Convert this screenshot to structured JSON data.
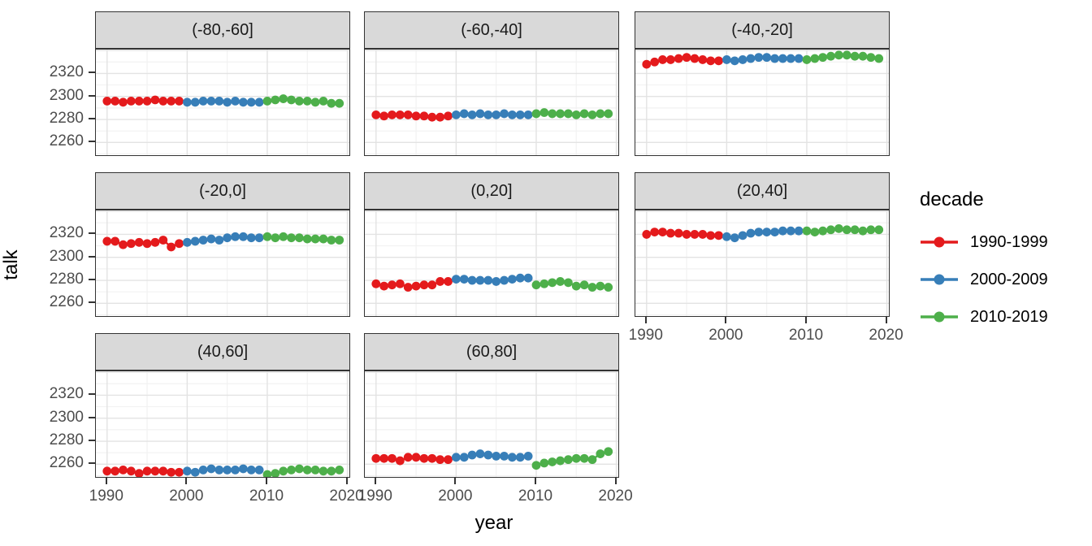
{
  "chart_data": {
    "type": "scatter",
    "xlabel": "year",
    "ylabel": "talk",
    "facet_variable_note": "panels are bins shown in strip labels",
    "x_ticks": [
      1990,
      2000,
      2010,
      2020
    ],
    "y_ticks": [
      2260,
      2280,
      2300,
      2320
    ],
    "y_grid_major": [
      2260,
      2280,
      2300,
      2320,
      2340
    ],
    "x_grid_minor": [
      1995,
      2005,
      2015
    ],
    "y_grid_minor": [
      2250,
      2270,
      2290,
      2310,
      2330
    ],
    "xlim": [
      1988.6,
      2020.45
    ],
    "ylim": [
      2247.5,
      2340.8
    ],
    "grid": true,
    "legend": {
      "title": "decade",
      "position": "right",
      "entries": [
        {
          "label": "1990-1999",
          "color": "#E41A1C"
        },
        {
          "label": "2000-2009",
          "color": "#377EB8"
        },
        {
          "label": "2010-2019",
          "color": "#4DAF4A"
        }
      ]
    },
    "facets": [
      {
        "label": "(-80,-60]",
        "series": [
          {
            "name": "1990-1999",
            "start_year": 1990,
            "values": [
              2296,
              2296,
              2295,
              2296,
              2296,
              2296,
              2297,
              2296,
              2296,
              2296
            ]
          },
          {
            "name": "2000-2009",
            "start_year": 2000,
            "values": [
              2295,
              2295,
              2296,
              2296,
              2296,
              2295,
              2296,
              2295,
              2295,
              2295
            ]
          },
          {
            "name": "2010-2019",
            "start_year": 2010,
            "values": [
              2296,
              2297,
              2298,
              2297,
              2296,
              2296,
              2295,
              2296,
              2294,
              2294
            ]
          }
        ]
      },
      {
        "label": "(-60,-40]",
        "series": [
          {
            "name": "1990-1999",
            "start_year": 1990,
            "values": [
              2284,
              2283,
              2284,
              2284,
              2284,
              2283,
              2283,
              2282,
              2282,
              2283
            ]
          },
          {
            "name": "2000-2009",
            "start_year": 2000,
            "values": [
              2284,
              2285,
              2284,
              2285,
              2284,
              2284,
              2285,
              2284,
              2284,
              2284
            ]
          },
          {
            "name": "2010-2019",
            "start_year": 2010,
            "values": [
              2285,
              2286,
              2285,
              2285,
              2285,
              2284,
              2285,
              2284,
              2285,
              2285
            ]
          }
        ]
      },
      {
        "label": "(-40,-20]",
        "series": [
          {
            "name": "1990-1999",
            "start_year": 1990,
            "values": [
              2328,
              2330,
              2332,
              2332,
              2333,
              2334,
              2333,
              2332,
              2331,
              2331
            ]
          },
          {
            "name": "2000-2009",
            "start_year": 2000,
            "values": [
              2332,
              2331,
              2332,
              2333,
              2334,
              2334,
              2333,
              2333,
              2333,
              2333
            ]
          },
          {
            "name": "2010-2019",
            "start_year": 2010,
            "values": [
              2332,
              2333,
              2334,
              2335,
              2336,
              2336,
              2335,
              2335,
              2334,
              2333
            ]
          }
        ]
      },
      {
        "label": "(-20,0]",
        "series": [
          {
            "name": "1990-1999",
            "start_year": 1990,
            "values": [
              2314,
              2314,
              2311,
              2312,
              2313,
              2312,
              2313,
              2315,
              2309,
              2312
            ]
          },
          {
            "name": "2000-2009",
            "start_year": 2000,
            "values": [
              2313,
              2314,
              2315,
              2316,
              2315,
              2317,
              2318,
              2318,
              2317,
              2317
            ]
          },
          {
            "name": "2010-2019",
            "start_year": 2010,
            "values": [
              2318,
              2317,
              2318,
              2317,
              2317,
              2316,
              2316,
              2316,
              2315,
              2315
            ]
          }
        ]
      },
      {
        "label": "(0,20]",
        "series": [
          {
            "name": "1990-1999",
            "start_year": 1990,
            "values": [
              2277,
              2275,
              2276,
              2277,
              2274,
              2275,
              2276,
              2276,
              2279,
              2279
            ]
          },
          {
            "name": "2000-2009",
            "start_year": 2000,
            "values": [
              2281,
              2281,
              2280,
              2280,
              2280,
              2279,
              2280,
              2281,
              2282,
              2282
            ]
          },
          {
            "name": "2010-2019",
            "start_year": 2010,
            "values": [
              2276,
              2277,
              2278,
              2279,
              2278,
              2275,
              2276,
              2274,
              2275,
              2274
            ]
          }
        ]
      },
      {
        "label": "(20,40]",
        "series": [
          {
            "name": "1990-1999",
            "start_year": 1990,
            "values": [
              2320,
              2322,
              2322,
              2321,
              2321,
              2320,
              2320,
              2320,
              2319,
              2319
            ]
          },
          {
            "name": "2000-2009",
            "start_year": 2000,
            "values": [
              2318,
              2317,
              2319,
              2321,
              2322,
              2322,
              2322,
              2323,
              2323,
              2323
            ]
          },
          {
            "name": "2010-2019",
            "start_year": 2010,
            "values": [
              2323,
              2322,
              2323,
              2324,
              2325,
              2324,
              2324,
              2323,
              2324,
              2324
            ]
          }
        ]
      },
      {
        "label": "(40,60]",
        "series": [
          {
            "name": "1990-1999",
            "start_year": 1990,
            "values": [
              2254,
              2254,
              2255,
              2254,
              2252,
              2254,
              2254,
              2254,
              2253,
              2253
            ]
          },
          {
            "name": "2000-2009",
            "start_year": 2000,
            "values": [
              2254,
              2253,
              2255,
              2256,
              2255,
              2255,
              2255,
              2256,
              2255,
              2255
            ]
          },
          {
            "name": "2010-2019",
            "start_year": 2010,
            "values": [
              2251,
              2252,
              2254,
              2255,
              2256,
              2255,
              2255,
              2254,
              2254,
              2255
            ]
          }
        ]
      },
      {
        "label": "(60,80]",
        "series": [
          {
            "name": "1990-1999",
            "start_year": 1990,
            "values": [
              2265,
              2265,
              2265,
              2263,
              2266,
              2266,
              2265,
              2265,
              2264,
              2264
            ]
          },
          {
            "name": "2000-2009",
            "start_year": 2000,
            "values": [
              2266,
              2266,
              2268,
              2269,
              2268,
              2267,
              2267,
              2266,
              2266,
              2267
            ]
          },
          {
            "name": "2010-2019",
            "start_year": 2010,
            "values": [
              2259,
              2261,
              2262,
              2263,
              2264,
              2265,
              2265,
              2264,
              2269,
              2271
            ]
          }
        ]
      }
    ]
  },
  "styles": {
    "strip_bg": "#D9D9D9",
    "panel_border": "#333333",
    "grid_major": "#E3E3E3",
    "grid_minor": "#F2F2F2",
    "tick_text": "#4D4D4D",
    "point_colors": [
      "#E41A1C",
      "#377EB8",
      "#4DAF4A"
    ]
  }
}
